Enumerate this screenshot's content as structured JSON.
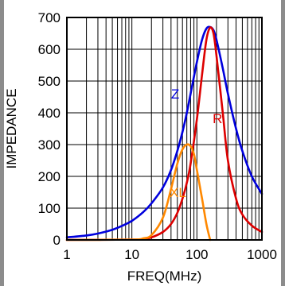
{
  "chart_data": {
    "type": "line",
    "title": "",
    "xlabel": "FREQ(MHz)",
    "ylabel": "IMPEDANCE",
    "x_scale": "log",
    "xlim": [
      1,
      1000
    ],
    "ylim": [
      0,
      700
    ],
    "x_ticks": [
      1,
      10,
      100,
      1000
    ],
    "x_tick_labels": [
      "1",
      "10",
      "100",
      "1000"
    ],
    "y_ticks": [
      0,
      100,
      200,
      300,
      400,
      500,
      600,
      700
    ],
    "y_tick_labels": [
      "0",
      "100",
      "200",
      "300",
      "400",
      "500",
      "600",
      "700"
    ],
    "grid": true,
    "legend": "none",
    "series": [
      {
        "name": "Z",
        "color": "#0000dd",
        "x": [
          1,
          2,
          3,
          5,
          7,
          10,
          15,
          20,
          30,
          40,
          50,
          60,
          70,
          80,
          100,
          120,
          140,
          160,
          180,
          200,
          250,
          300,
          400,
          500,
          700,
          1000
        ],
        "y": [
          8,
          14,
          20,
          32,
          44,
          60,
          88,
          115,
          165,
          220,
          280,
          340,
          400,
          460,
          560,
          630,
          665,
          670,
          660,
          630,
          540,
          460,
          350,
          280,
          200,
          145
        ]
      },
      {
        "name": "R",
        "color": "#dd0000",
        "x": [
          1,
          10,
          15,
          20,
          30,
          40,
          50,
          60,
          70,
          80,
          100,
          120,
          140,
          160,
          180,
          200,
          250,
          300,
          400,
          500,
          700,
          1000
        ],
        "y": [
          0,
          1,
          3,
          8,
          25,
          50,
          85,
          130,
          180,
          240,
          380,
          520,
          630,
          668,
          650,
          580,
          400,
          250,
          130,
          80,
          45,
          25
        ]
      },
      {
        "name": "XL",
        "color": "#ff8800",
        "x": [
          1,
          10,
          15,
          20,
          30,
          40,
          50,
          60,
          70,
          80,
          90,
          100,
          120,
          140,
          160
        ],
        "y": [
          0,
          1,
          5,
          15,
          70,
          160,
          240,
          285,
          300,
          295,
          270,
          220,
          130,
          50,
          0
        ]
      }
    ]
  }
}
